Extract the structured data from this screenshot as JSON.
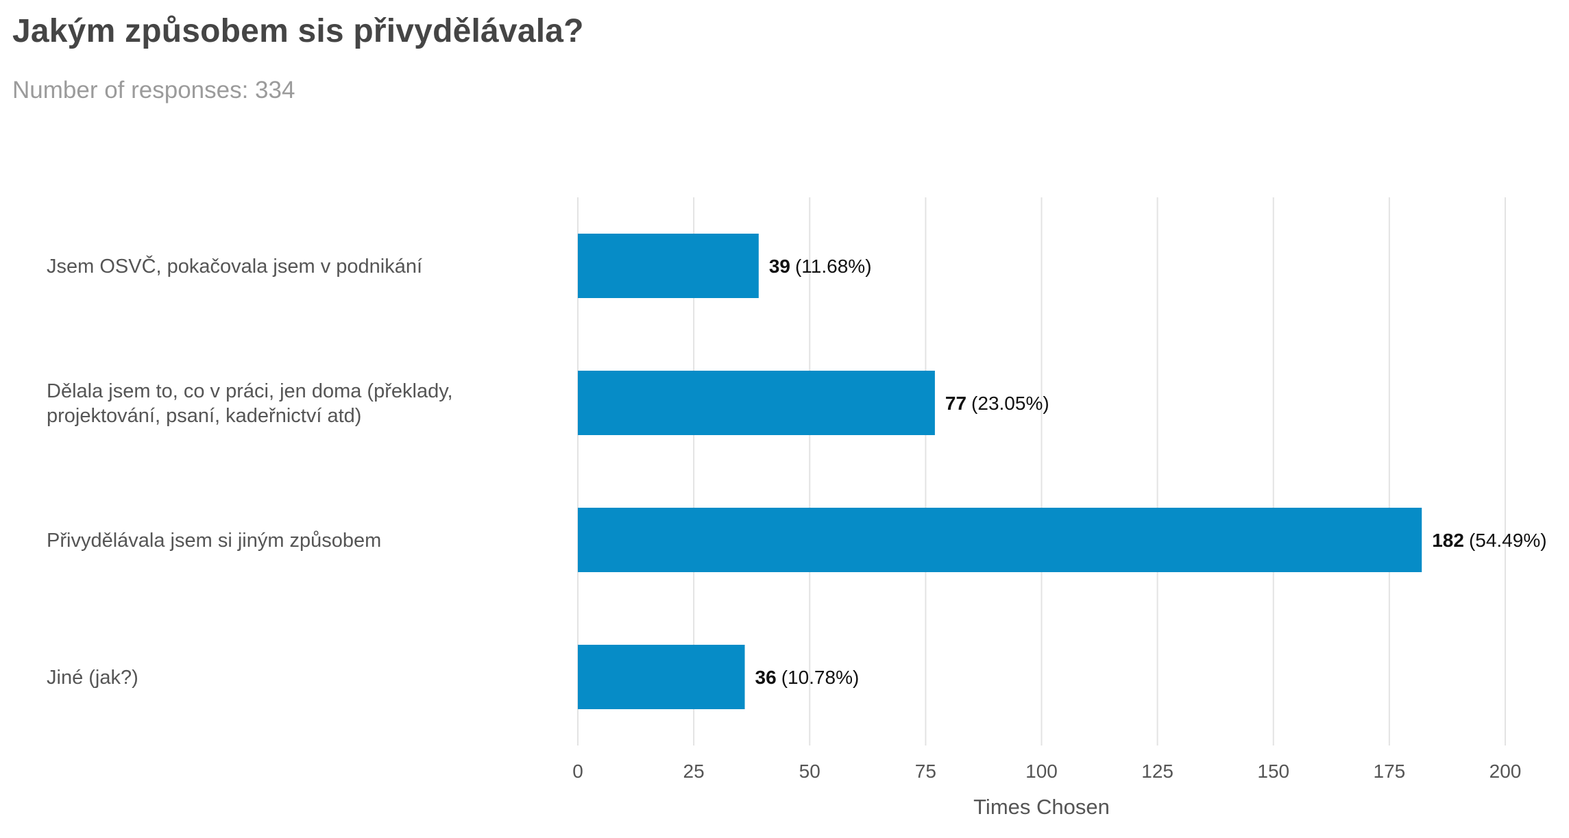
{
  "header": {
    "title": "Jakým způsobem sis přivydělávala?",
    "subtitle": "Number of responses: 334"
  },
  "chart_data": {
    "type": "bar",
    "orientation": "horizontal",
    "categories": [
      [
        "Jsem OSVČ, pokačovala jsem v podnikání"
      ],
      [
        "Dělala jsem to, co v práci, jen doma (překlady,",
        "projektování, psaní, kadeřnictví atd)"
      ],
      [
        "Přivydělávala jsem si jiným způsobem"
      ],
      [
        "Jiné (jak?)"
      ]
    ],
    "values": [
      39,
      77,
      182,
      36
    ],
    "percent_labels": [
      "(11.68%)",
      "(23.05%)",
      "(54.49%)",
      "(10.78%)"
    ],
    "xlabel": "Times Chosen",
    "xlim": [
      0,
      200
    ],
    "xticks": [
      0,
      25,
      50,
      75,
      100,
      125,
      150,
      175,
      200
    ],
    "grid": true,
    "legend": "none",
    "colors": {
      "bar": "#068cc7",
      "grid": "#e3e3e3"
    }
  }
}
